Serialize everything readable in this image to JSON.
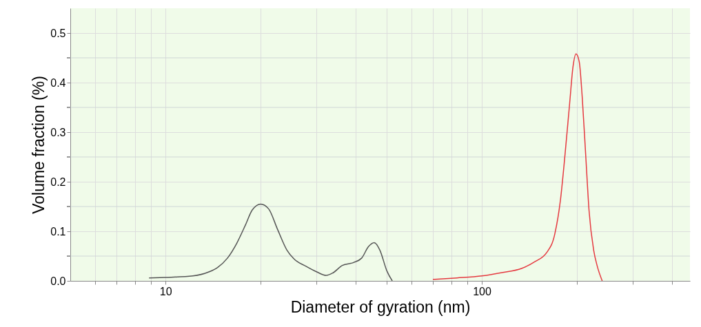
{
  "chart_data": {
    "type": "line",
    "xlabel": "Diameter of gyration (nm)",
    "ylabel": "Volume fraction (%)",
    "log": "x",
    "grid": true,
    "line_style": "solid",
    "xlim": [
      5,
      455
    ],
    "ylim": [
      0,
      0.55
    ],
    "xticks": [
      {
        "value": 6,
        "label": null
      },
      {
        "value": 7,
        "label": null
      },
      {
        "value": 8,
        "label": null
      },
      {
        "value": 9,
        "label": null
      },
      10,
      {
        "value": 20,
        "label": null
      },
      {
        "value": 30,
        "label": null
      },
      {
        "value": 40,
        "label": null
      },
      {
        "value": 50,
        "label": null
      },
      {
        "value": 60,
        "label": null
      },
      {
        "value": 70,
        "label": null
      },
      {
        "value": 80,
        "label": null
      },
      {
        "value": 90,
        "label": null
      },
      100,
      {
        "value": 200,
        "label": null
      },
      {
        "value": 300,
        "label": null
      },
      {
        "value": 400,
        "label": null
      }
    ],
    "yticks": [
      {
        "value": 0,
        "label": "0.0"
      },
      {
        "value": 0.05,
        "label": null
      },
      0.1,
      {
        "value": 0.15,
        "label": null
      },
      0.2,
      {
        "value": 0.25,
        "label": null
      },
      0.3,
      {
        "value": 0.35,
        "label": null
      },
      0.4,
      {
        "value": 0.45,
        "label": null
      },
      0.5
    ],
    "series": [
      {
        "color": "#555555",
        "x": [
          8.87,
          10,
          12.2,
          13.7,
          14.6,
          15.7,
          16.8,
          17.9,
          18.8,
          20.0,
          21.2,
          22.6,
          24.2,
          25.5,
          27.7,
          30.1,
          32.2,
          33.8,
          36.2,
          39.3,
          41.7,
          43.8,
          45.7,
          47.6,
          50.1,
          52.1
        ],
        "values": [
          0.006,
          0.007,
          0.01,
          0.018,
          0.027,
          0.046,
          0.076,
          0.113,
          0.143,
          0.155,
          0.145,
          0.104,
          0.062,
          0.044,
          0.03,
          0.018,
          0.011,
          0.016,
          0.031,
          0.037,
          0.046,
          0.069,
          0.077,
          0.062,
          0.02,
          0.0
        ]
      },
      {
        "color": "#e5383f",
        "x": [
          70.0,
          83.4,
          100,
          116.6,
          133.4,
          147.4,
          160.3,
          170,
          177.3,
          183.3,
          189.5,
          194.2,
          198.5,
          203.2,
          207.6,
          212.9,
          218.3,
          225.7,
          231.6,
          240.2
        ],
        "values": [
          0.003,
          0.006,
          0.01,
          0.017,
          0.025,
          0.039,
          0.057,
          0.094,
          0.164,
          0.256,
          0.358,
          0.432,
          0.458,
          0.442,
          0.372,
          0.256,
          0.141,
          0.062,
          0.03,
          0.0
        ]
      }
    ]
  }
}
